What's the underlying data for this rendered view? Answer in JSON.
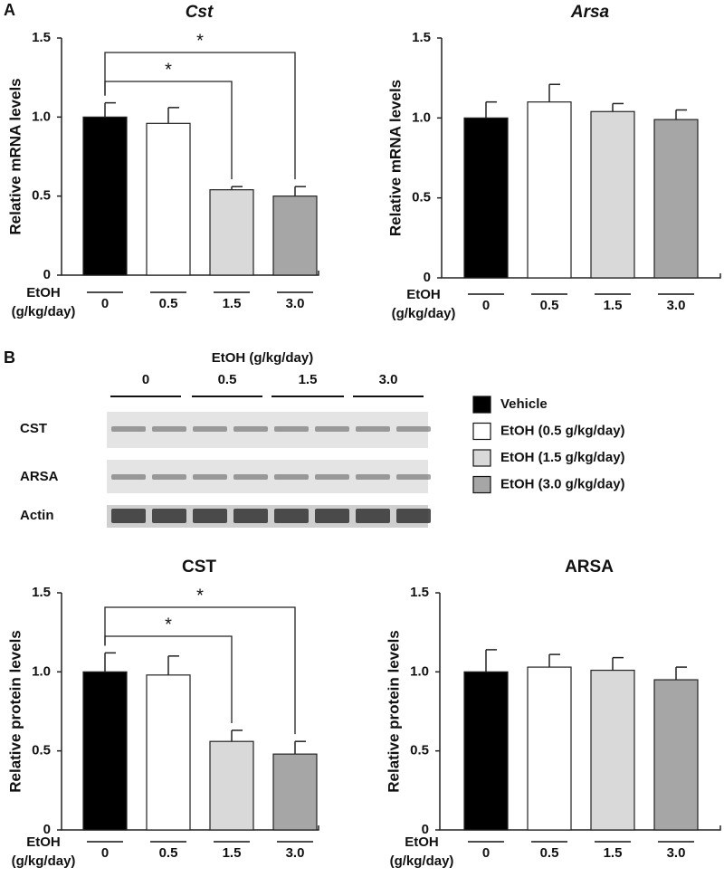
{
  "panel_labels": [
    "A",
    "B"
  ],
  "blot": {
    "title": "EtOH (g/kg/day)",
    "groups": [
      "0",
      "0.5",
      "1.5",
      "3.0"
    ],
    "rows": [
      "CST",
      "ARSA",
      "Actin"
    ]
  },
  "legend": [
    {
      "name": "Vehicle",
      "color": "#000000"
    },
    {
      "name": "EtOH (0.5  g/kg/day)",
      "color": "#ffffff"
    },
    {
      "name": "EtOH (1.5  g/kg/day)",
      "color": "#d9d9d9"
    },
    {
      "name": "EtOH (3.0  g/kg/day)",
      "color": "#a6a6a6"
    }
  ],
  "chart_data": [
    {
      "type": "bar",
      "title": "Cst",
      "title_style": "italic",
      "ylabel": "Relative mRNA levels",
      "xlabel": [
        "EtOH",
        "(g/kg/day)"
      ],
      "categories": [
        "0",
        "0.5",
        "1.5",
        "3.0"
      ],
      "values": [
        1.0,
        0.96,
        0.54,
        0.5
      ],
      "errors": [
        0.09,
        0.1,
        0.02,
        0.06
      ],
      "colors": [
        "#000000",
        "#ffffff",
        "#d9d9d9",
        "#a6a6a6"
      ],
      "ylim": [
        0,
        1.5
      ],
      "yticks": [
        0,
        0.5,
        {
          "value": 1,
          "label": "1.0"
        },
        1.5
      ],
      "annotations": [
        {
          "text": "*",
          "pair": [
            0,
            2
          ]
        },
        {
          "text": "*",
          "pair": [
            0,
            3
          ]
        }
      ]
    },
    {
      "type": "bar",
      "title": "Arsa",
      "title_style": "italic",
      "ylabel": "Relative mRNA levels",
      "xlabel": [
        "EtOH",
        "(g/kg/day)"
      ],
      "categories": [
        "0",
        "0.5",
        "1.5",
        "3.0"
      ],
      "values": [
        1.0,
        1.1,
        1.04,
        0.99
      ],
      "errors": [
        0.1,
        0.11,
        0.05,
        0.06
      ],
      "colors": [
        "#000000",
        "#ffffff",
        "#d9d9d9",
        "#a6a6a6"
      ],
      "ylim": [
        0,
        1.5
      ],
      "yticks": [
        0,
        0.5,
        {
          "value": 1,
          "label": "1.0"
        },
        1.5
      ]
    },
    {
      "type": "bar",
      "title": "CST",
      "title_style": "normal",
      "ylabel": "Relative protein levels",
      "xlabel": [
        "EtOH",
        "(g/kg/day)"
      ],
      "categories": [
        "0",
        "0.5",
        "1.5",
        "3.0"
      ],
      "values": [
        1.0,
        0.98,
        0.56,
        0.48
      ],
      "errors": [
        0.12,
        0.12,
        0.07,
        0.08
      ],
      "colors": [
        "#000000",
        "#ffffff",
        "#d9d9d9",
        "#a6a6a6"
      ],
      "ylim": [
        0,
        1.5
      ],
      "yticks": [
        0,
        0.5,
        {
          "value": 1,
          "label": "1.0"
        },
        1.5
      ],
      "annotations": [
        {
          "text": "*",
          "pair": [
            0,
            2
          ]
        },
        {
          "text": "*",
          "pair": [
            0,
            3
          ]
        }
      ]
    },
    {
      "type": "bar",
      "title": "ARSA",
      "title_style": "normal",
      "ylabel": "Relative protein levels",
      "xlabel": [
        "EtOH",
        "(g/kg/day)"
      ],
      "categories": [
        "0",
        "0.5",
        "1.5",
        "3.0"
      ],
      "values": [
        1.0,
        1.03,
        1.01,
        0.95
      ],
      "errors": [
        0.14,
        0.08,
        0.08,
        0.08
      ],
      "colors": [
        "#000000",
        "#ffffff",
        "#d9d9d9",
        "#a6a6a6"
      ],
      "ylim": [
        0,
        1.5
      ],
      "yticks": [
        0,
        0.5,
        {
          "value": 1,
          "label": "1.0"
        },
        1.5
      ]
    }
  ]
}
